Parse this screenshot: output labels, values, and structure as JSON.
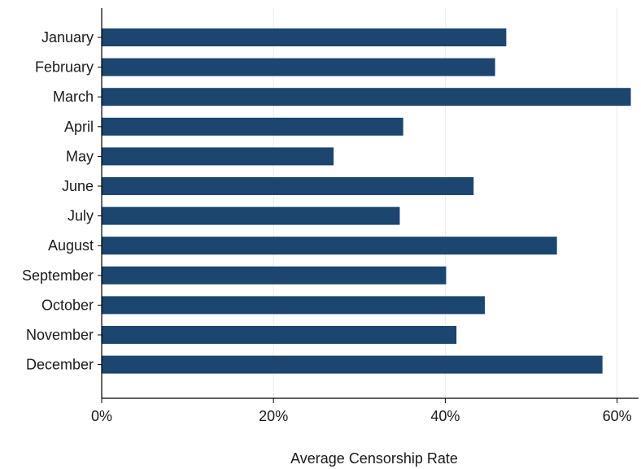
{
  "chart_data": {
    "type": "bar",
    "orientation": "horizontal",
    "xlabel": "Average Censorship Rate",
    "ylabel": "",
    "xlim": [
      0,
      62.5
    ],
    "x_ticks": [
      0,
      20,
      40,
      60
    ],
    "x_tick_labels": [
      "0%",
      "20%",
      "40%",
      "60%"
    ],
    "grid": "vertical",
    "categories": [
      "January",
      "February",
      "March",
      "April",
      "May",
      "June",
      "July",
      "August",
      "September",
      "October",
      "November",
      "December"
    ],
    "values": [
      47.1,
      45.8,
      61.6,
      35.1,
      27.0,
      43.3,
      34.7,
      53.0,
      40.1,
      44.6,
      41.3,
      58.3
    ],
    "colors": {
      "bar": "#1c4570",
      "grid": "#ebebeb",
      "axis": "#000000"
    }
  }
}
